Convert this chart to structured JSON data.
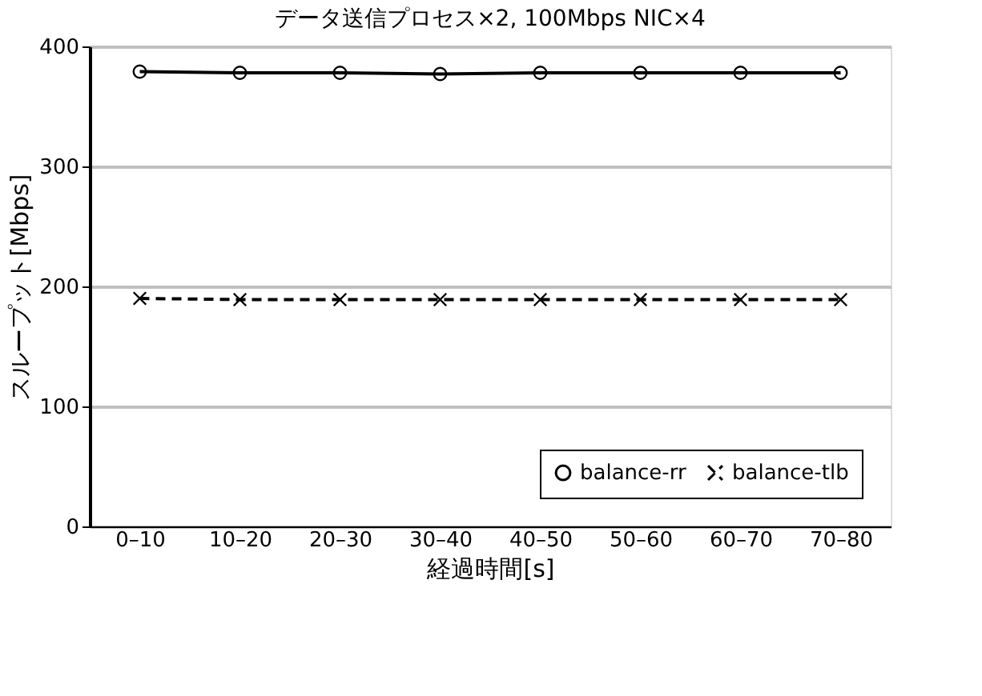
{
  "chart_data": {
    "type": "line",
    "title": "データ送信プロセス×2, 100Mbps NIC×4",
    "xlabel": "経過時間[s]",
    "ylabel": "スループット[Mbps]",
    "categories": [
      "0–10",
      "10–20",
      "20–30",
      "30–40",
      "40–50",
      "50–60",
      "60–70",
      "70–80"
    ],
    "series": [
      {
        "name": "balance-rr",
        "color": "#000000",
        "marker": "circle",
        "line_style": "solid",
        "values": [
          379,
          378,
          378,
          377,
          378,
          378,
          378,
          378
        ]
      },
      {
        "name": "balance-tlb",
        "color": "#000000",
        "marker": "cross",
        "line_style": "dashed",
        "values": [
          190,
          189,
          189,
          189,
          189,
          189,
          189,
          189
        ]
      }
    ],
    "ylim": [
      0,
      400
    ],
    "yticks": [
      0,
      100,
      200,
      300,
      400
    ],
    "grid": "y",
    "legend": "bottom right"
  }
}
